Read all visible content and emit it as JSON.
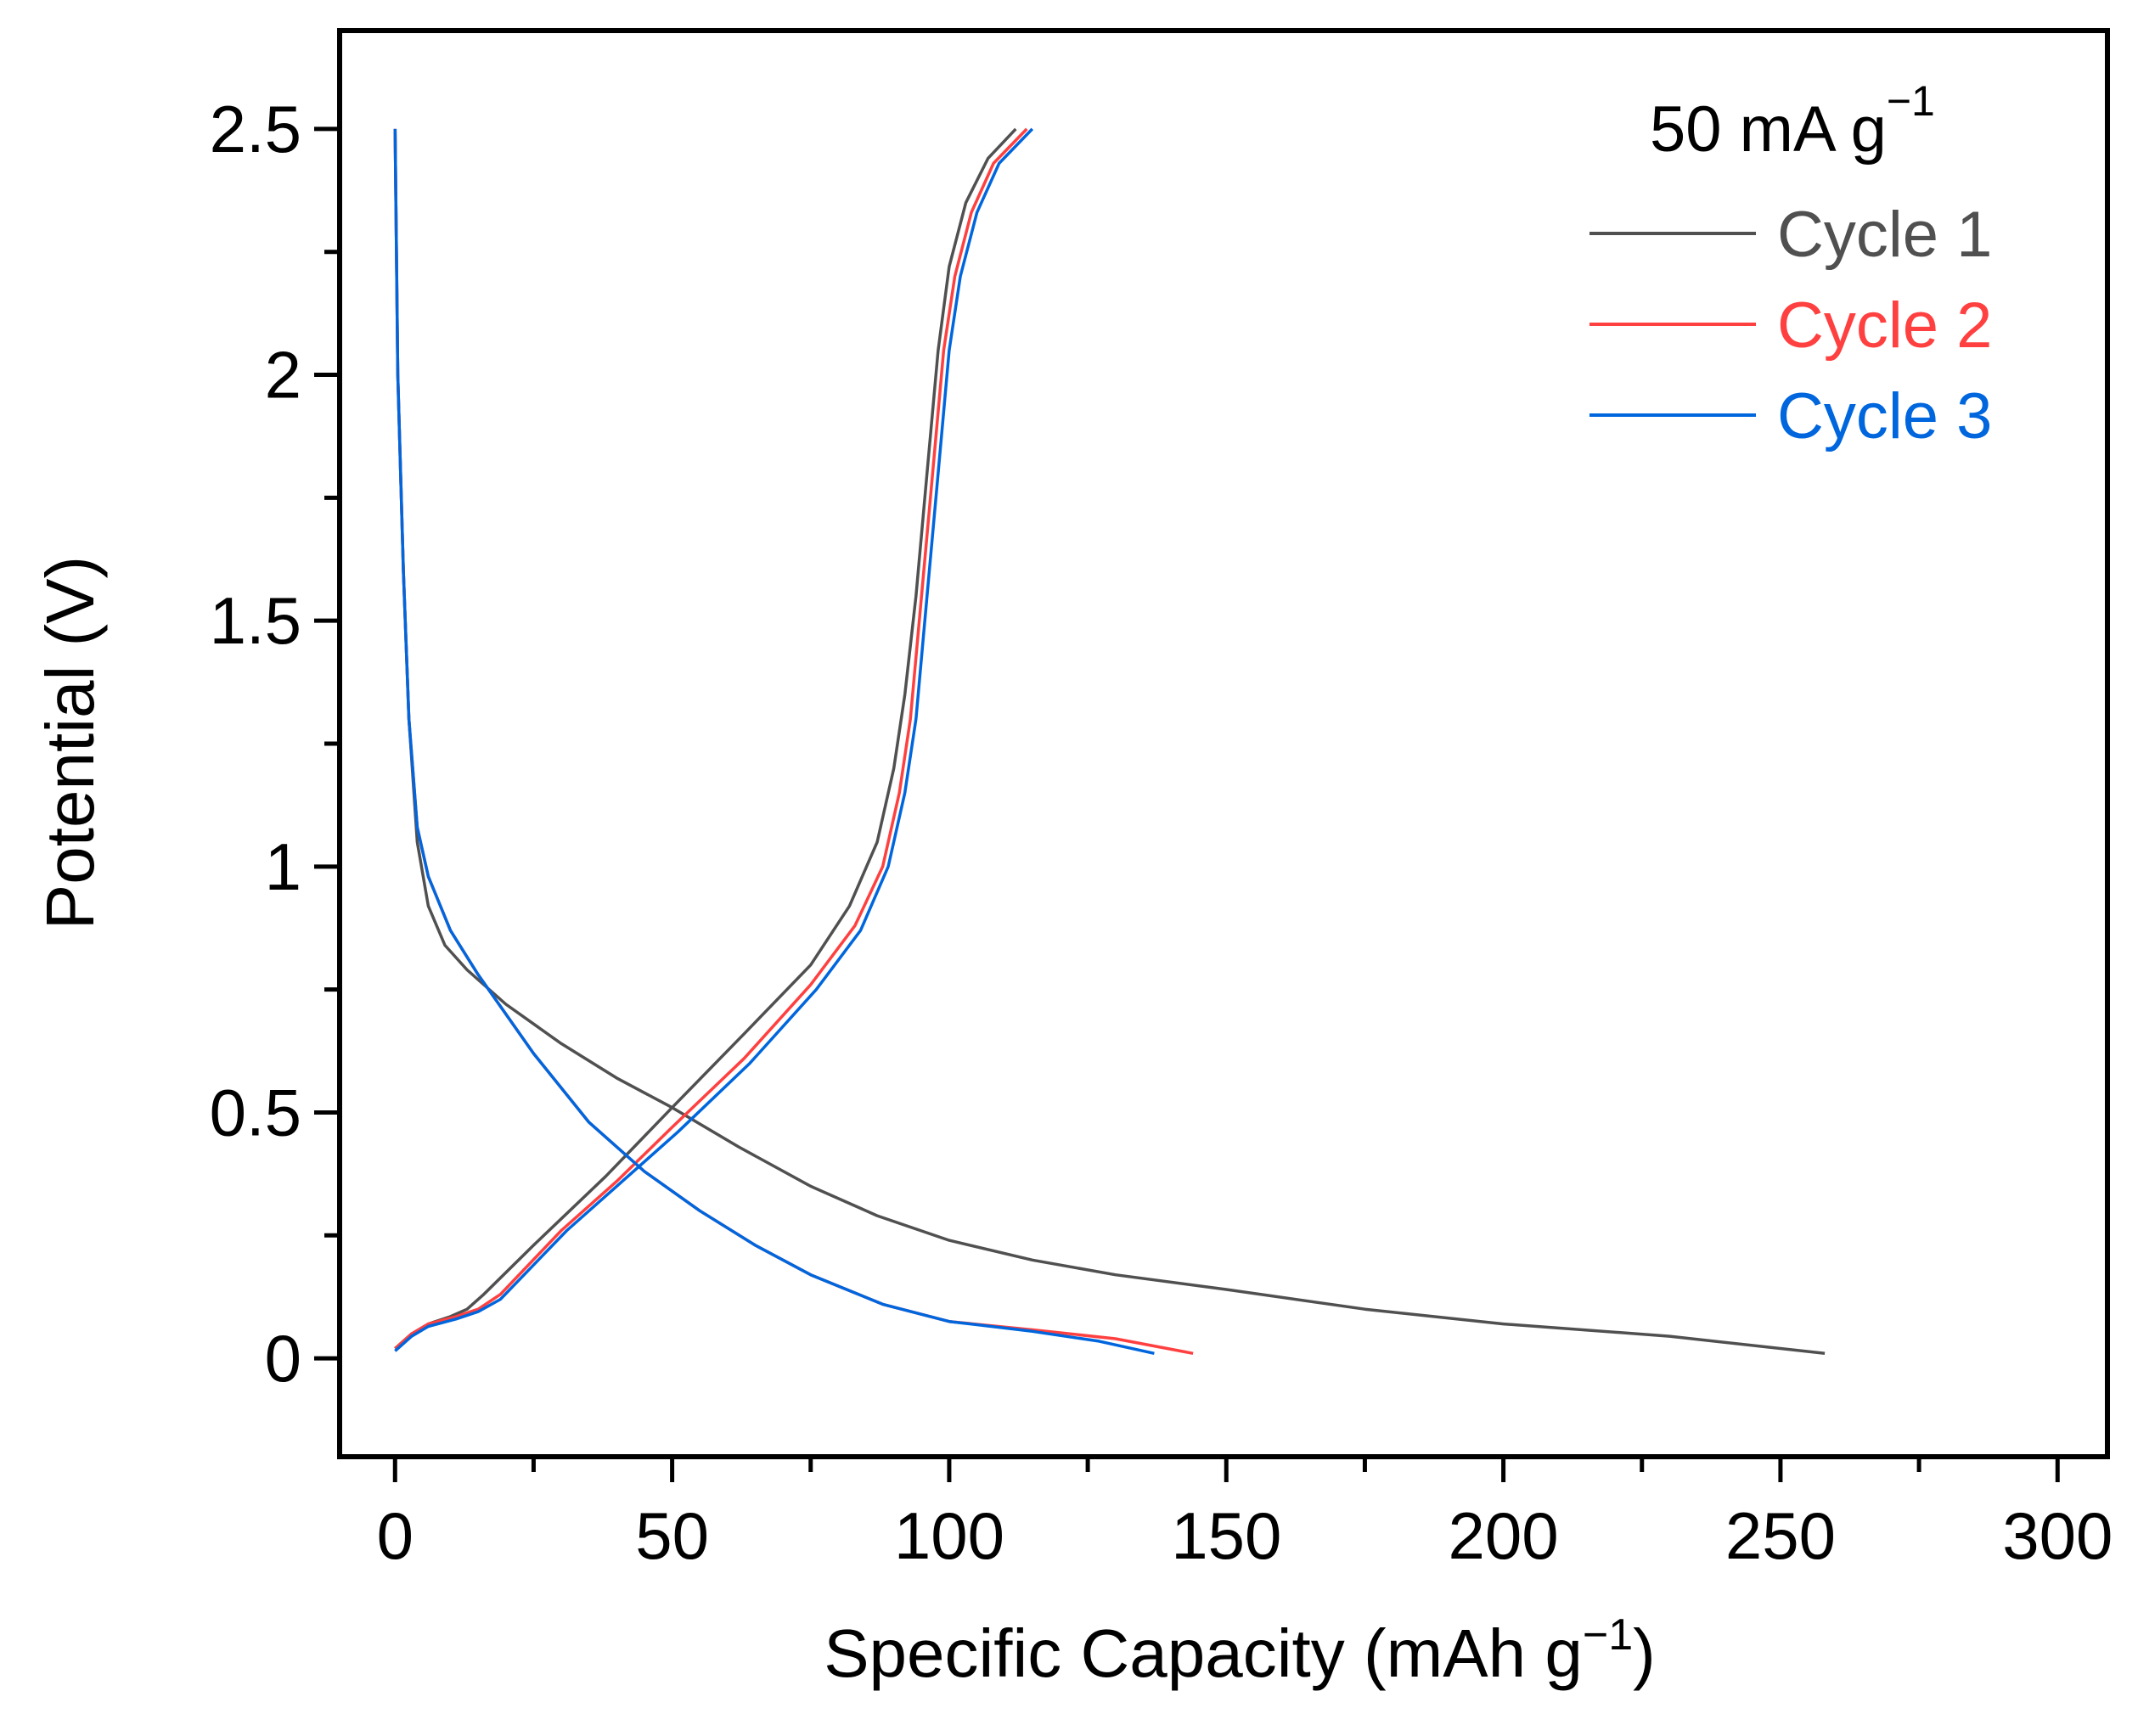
{
  "chart_data": {
    "type": "line",
    "title": "",
    "xlabel": "Specific Capacity (mAh g",
    "xlabel_sup": "−1",
    "xlabel_end": ")",
    "ylabel": "Potential (V)",
    "xlim": [
      -10,
      309
    ],
    "ylim": [
      -0.2,
      2.7
    ],
    "xticks": [
      0,
      50,
      100,
      150,
      200,
      250,
      300
    ],
    "xtick_labels": [
      "0",
      "50",
      "100",
      "150",
      "200",
      "250",
      "300"
    ],
    "yticks": [
      0,
      0.5,
      1,
      1.5,
      2,
      2.5
    ],
    "ytick_labels": [
      "0",
      "0.5",
      "1",
      "1.5",
      "2",
      "2.5"
    ],
    "grid": false,
    "annotation": {
      "text": "50 mA g",
      "sup": "−1"
    },
    "legend_placement": "top-right",
    "series": [
      {
        "name": "Cycle 1",
        "color": "#505050",
        "discharge": [
          [
            0,
            2.5
          ],
          [
            0.5,
            2.0
          ],
          [
            1.5,
            1.6
          ],
          [
            2.5,
            1.3
          ],
          [
            4,
            1.05
          ],
          [
            6,
            0.92
          ],
          [
            9,
            0.84
          ],
          [
            13,
            0.79
          ],
          [
            20,
            0.72
          ],
          [
            30,
            0.64
          ],
          [
            40,
            0.57
          ],
          [
            50,
            0.51
          ],
          [
            62,
            0.43
          ],
          [
            75,
            0.35
          ],
          [
            87,
            0.29
          ],
          [
            100,
            0.24
          ],
          [
            115,
            0.2
          ],
          [
            130,
            0.17
          ],
          [
            150,
            0.14
          ],
          [
            175,
            0.1
          ],
          [
            200,
            0.07
          ],
          [
            230,
            0.045
          ],
          [
            258,
            0.01
          ]
        ],
        "charge": [
          [
            0,
            0.02
          ],
          [
            3,
            0.05
          ],
          [
            6,
            0.07
          ],
          [
            10,
            0.085
          ],
          [
            13,
            0.1
          ],
          [
            16,
            0.13
          ],
          [
            25,
            0.23
          ],
          [
            38,
            0.37
          ],
          [
            50,
            0.51
          ],
          [
            63,
            0.66
          ],
          [
            75,
            0.8
          ],
          [
            82,
            0.92
          ],
          [
            87,
            1.05
          ],
          [
            90,
            1.2
          ],
          [
            92,
            1.35
          ],
          [
            94,
            1.55
          ],
          [
            96,
            1.8
          ],
          [
            98,
            2.05
          ],
          [
            100,
            2.22
          ],
          [
            103,
            2.35
          ],
          [
            107,
            2.44
          ],
          [
            112,
            2.5
          ]
        ]
      },
      {
        "name": "Cycle 2",
        "color": "#FF4040",
        "discharge": [
          [
            0,
            2.5
          ],
          [
            0.5,
            2.0
          ],
          [
            1.5,
            1.6
          ],
          [
            2.5,
            1.3
          ],
          [
            4,
            1.08
          ],
          [
            6,
            0.98
          ],
          [
            10,
            0.87
          ],
          [
            15,
            0.78
          ],
          [
            25,
            0.62
          ],
          [
            35,
            0.48
          ],
          [
            45,
            0.38
          ],
          [
            55,
            0.3
          ],
          [
            65,
            0.23
          ],
          [
            75,
            0.17
          ],
          [
            88,
            0.11
          ],
          [
            100,
            0.075
          ],
          [
            115,
            0.058
          ],
          [
            130,
            0.04
          ],
          [
            144,
            0.01
          ]
        ],
        "charge": [
          [
            0,
            0.02
          ],
          [
            3,
            0.05
          ],
          [
            6,
            0.07
          ],
          [
            11,
            0.085
          ],
          [
            15,
            0.1
          ],
          [
            19,
            0.13
          ],
          [
            30,
            0.26
          ],
          [
            40,
            0.36
          ],
          [
            50,
            0.47
          ],
          [
            63,
            0.61
          ],
          [
            75,
            0.76
          ],
          [
            83,
            0.88
          ],
          [
            88,
            1.0
          ],
          [
            91,
            1.15
          ],
          [
            93,
            1.3
          ],
          [
            95,
            1.55
          ],
          [
            97,
            1.8
          ],
          [
            99,
            2.05
          ],
          [
            101,
            2.2
          ],
          [
            104,
            2.33
          ],
          [
            108,
            2.43
          ],
          [
            114,
            2.5
          ]
        ]
      },
      {
        "name": "Cycle 3",
        "color": "#0066DD",
        "discharge": [
          [
            0,
            2.5
          ],
          [
            0.5,
            2.0
          ],
          [
            1.5,
            1.6
          ],
          [
            2.5,
            1.3
          ],
          [
            4,
            1.08
          ],
          [
            6,
            0.98
          ],
          [
            10,
            0.87
          ],
          [
            15,
            0.78
          ],
          [
            25,
            0.62
          ],
          [
            35,
            0.48
          ],
          [
            45,
            0.38
          ],
          [
            55,
            0.3
          ],
          [
            65,
            0.23
          ],
          [
            75,
            0.17
          ],
          [
            88,
            0.11
          ],
          [
            100,
            0.075
          ],
          [
            115,
            0.055
          ],
          [
            127,
            0.035
          ],
          [
            137,
            0.01
          ]
        ],
        "charge": [
          [
            0,
            0.015
          ],
          [
            3,
            0.045
          ],
          [
            6,
            0.065
          ],
          [
            11,
            0.08
          ],
          [
            15,
            0.095
          ],
          [
            19,
            0.12
          ],
          [
            31,
            0.26
          ],
          [
            41,
            0.36
          ],
          [
            51,
            0.46
          ],
          [
            64,
            0.6
          ],
          [
            76,
            0.75
          ],
          [
            84,
            0.87
          ],
          [
            89,
            1.0
          ],
          [
            92,
            1.15
          ],
          [
            94,
            1.3
          ],
          [
            96,
            1.55
          ],
          [
            98,
            1.8
          ],
          [
            100,
            2.05
          ],
          [
            102,
            2.2
          ],
          [
            105,
            2.33
          ],
          [
            109,
            2.43
          ],
          [
            115,
            2.5
          ]
        ]
      }
    ]
  }
}
